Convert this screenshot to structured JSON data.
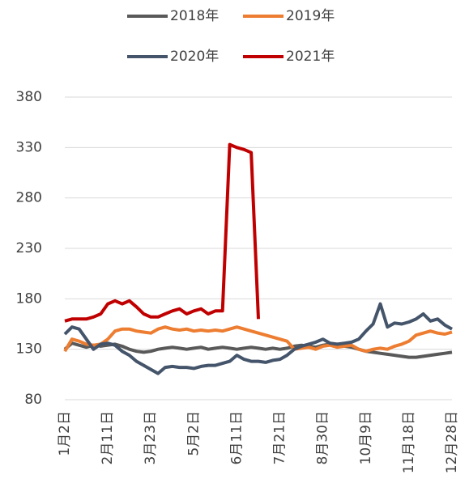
{
  "chart_data": {
    "type": "line",
    "categories": [
      "1月2日",
      null,
      null,
      null,
      null,
      null,
      "2月11日",
      null,
      null,
      null,
      null,
      null,
      "3月23日",
      null,
      null,
      null,
      null,
      null,
      "5月2日",
      null,
      null,
      null,
      null,
      null,
      "6月11日",
      null,
      null,
      null,
      null,
      null,
      "7月21日",
      null,
      null,
      null,
      null,
      null,
      "8月30日",
      null,
      null,
      null,
      null,
      null,
      "10月9日",
      null,
      null,
      null,
      null,
      null,
      "11月18日",
      null,
      null,
      null,
      null,
      null,
      "12月28日"
    ],
    "series": [
      {
        "name": "2018年",
        "color": "#595959",
        "values": [
          130,
          136,
          134,
          132,
          134,
          133,
          134,
          135,
          133,
          130,
          128,
          127,
          128,
          130,
          131,
          132,
          131,
          130,
          131,
          132,
          130,
          131,
          132,
          131,
          130,
          131,
          132,
          131,
          130,
          131,
          130,
          131,
          133,
          134,
          133,
          132,
          134,
          135,
          134,
          133,
          132,
          130,
          128,
          127,
          126,
          125,
          124,
          123,
          122,
          122,
          123,
          124,
          125,
          126,
          127
        ]
      },
      {
        "name": "2019年",
        "color": "#ed7d31",
        "values": [
          128,
          140,
          138,
          135,
          134,
          135,
          140,
          148,
          150,
          150,
          148,
          147,
          146,
          150,
          152,
          150,
          149,
          150,
          148,
          149,
          148,
          149,
          148,
          150,
          152,
          150,
          148,
          146,
          144,
          142,
          140,
          138,
          130,
          131,
          132,
          130,
          133,
          134,
          132,
          133,
          134,
          130,
          128,
          130,
          131,
          130,
          133,
          135,
          138,
          144,
          146,
          148,
          146,
          145,
          147
        ]
      },
      {
        "name": "2020年",
        "color": "#44546a",
        "values": [
          145,
          152,
          150,
          140,
          130,
          135,
          136,
          134,
          128,
          124,
          118,
          114,
          110,
          106,
          112,
          113,
          112,
          112,
          111,
          113,
          114,
          114,
          116,
          118,
          124,
          120,
          118,
          118,
          117,
          119,
          120,
          124,
          130,
          133,
          135,
          137,
          140,
          136,
          135,
          136,
          137,
          140,
          148,
          155,
          175,
          152,
          156,
          155,
          157,
          160,
          165,
          158,
          160,
          154,
          150
        ]
      },
      {
        "name": "2021年",
        "color": "#c00000",
        "values": [
          158,
          160,
          160,
          160,
          162,
          165,
          175,
          178,
          175,
          178,
          172,
          165,
          162,
          162,
          165,
          168,
          170,
          165,
          168,
          170,
          165,
          168,
          168,
          333,
          330,
          328,
          325,
          160,
          null,
          null,
          null,
          null,
          null,
          null,
          null,
          null,
          null,
          null,
          null,
          null,
          null,
          null,
          null,
          null,
          null,
          null,
          null,
          null,
          null,
          null,
          null,
          null,
          null,
          null,
          null
        ]
      }
    ],
    "ylim": [
      80,
      380
    ],
    "yticks": [
      80,
      130,
      180,
      230,
      280,
      330,
      380
    ],
    "grid": true
  }
}
